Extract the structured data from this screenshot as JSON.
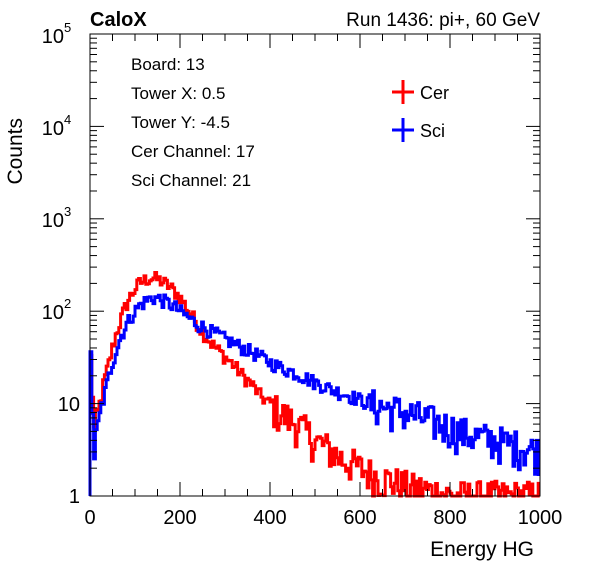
{
  "header": {
    "title": "CaloX",
    "run_info": "Run 1436: pi+, 60 GeV"
  },
  "info_box": {
    "lines": [
      "Board: 13",
      "Tower X: 0.5",
      "Tower Y: -4.5",
      "Cer Channel: 17",
      "Sci Channel: 21"
    ]
  },
  "chart_data": {
    "type": "line",
    "title": "CaloX",
    "subtitle": "Run 1436: pi+, 60 GeV",
    "xlabel": "Energy HG",
    "ylabel": "Counts",
    "xlim": [
      0,
      1000
    ],
    "ylim": [
      1,
      100000
    ],
    "yscale": "log",
    "grid": false,
    "legend_position": "top-right",
    "x_ticks": [
      "0",
      "200",
      "400",
      "600",
      "800",
      "1000"
    ],
    "y_ticks": [
      "1",
      "10",
      "10^2",
      "10^3",
      "10^4",
      "10^5"
    ],
    "series": [
      {
        "name": "Cer",
        "color": "#ff0000",
        "x": [
          0,
          10,
          20,
          30,
          40,
          50,
          60,
          70,
          80,
          90,
          100,
          110,
          120,
          130,
          140,
          150,
          160,
          170,
          180,
          190,
          200,
          210,
          220,
          230,
          240,
          250,
          260,
          270,
          280,
          290,
          300,
          320,
          340,
          360,
          380,
          400,
          420,
          440,
          460,
          480,
          500,
          520,
          540,
          560,
          580,
          600,
          620,
          640,
          660,
          680,
          700,
          720,
          740,
          760,
          780,
          800,
          820,
          840,
          860,
          880,
          900,
          920,
          940,
          960,
          980,
          1000
        ],
        "values": [
          50,
          5,
          8,
          16,
          25,
          40,
          60,
          85,
          115,
          145,
          175,
          200,
          215,
          225,
          230,
          222,
          210,
          195,
          180,
          160,
          140,
          120,
          100,
          85,
          72,
          60,
          52,
          45,
          40,
          36,
          32,
          26,
          20,
          16,
          12,
          10,
          8,
          7,
          6,
          5,
          4,
          3.5,
          3,
          2.5,
          2.3,
          2,
          1.8,
          1.6,
          1.5,
          1.4,
          1.3,
          1.2,
          1.2,
          1.1,
          1.1,
          1,
          1,
          1,
          1,
          1,
          1,
          1,
          1,
          1,
          1,
          1
        ]
      },
      {
        "name": "Sci",
        "color": "#0000ff",
        "x": [
          0,
          10,
          20,
          30,
          40,
          50,
          60,
          70,
          80,
          90,
          100,
          110,
          120,
          130,
          140,
          150,
          160,
          170,
          180,
          190,
          200,
          210,
          220,
          230,
          240,
          250,
          260,
          270,
          280,
          290,
          300,
          320,
          340,
          360,
          380,
          400,
          420,
          440,
          460,
          480,
          500,
          520,
          540,
          560,
          580,
          600,
          620,
          640,
          660,
          680,
          700,
          720,
          740,
          760,
          780,
          800,
          820,
          840,
          860,
          880,
          900,
          920,
          940,
          960,
          980,
          1000
        ],
        "values": [
          60,
          3,
          6,
          11,
          18,
          28,
          40,
          55,
          70,
          85,
          100,
          115,
          125,
          135,
          140,
          138,
          132,
          125,
          118,
          110,
          100,
          92,
          85,
          78,
          72,
          68,
          64,
          60,
          57,
          54,
          50,
          45,
          40,
          36,
          32,
          28,
          25,
          23,
          21,
          19,
          17,
          15.5,
          14,
          13,
          12,
          11,
          10,
          9.5,
          9,
          8.5,
          8,
          7.5,
          7,
          6.5,
          6,
          5.5,
          5,
          4.7,
          4.4,
          4.2,
          4,
          3.8,
          3.6,
          3.4,
          3.2,
          3
        ]
      }
    ]
  }
}
